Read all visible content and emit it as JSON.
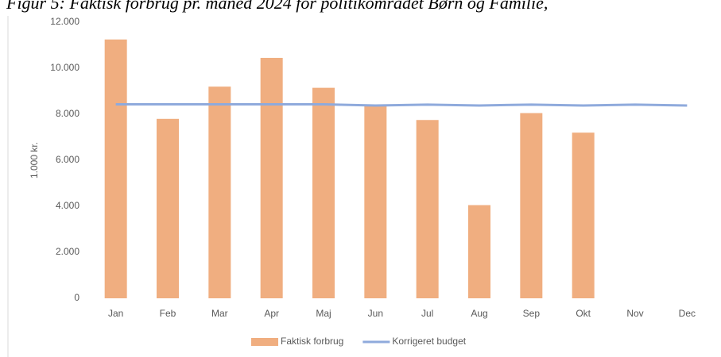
{
  "chart_data": {
    "type": "bar",
    "title": "Figur 5: Faktisk forbrug pr. måned 2024 for politikområdet Børn og Familie,",
    "ylabel": "1.000 kr.",
    "categories": [
      "Jan",
      "Feb",
      "Mar",
      "Apr",
      "Maj",
      "Jun",
      "Jul",
      "Aug",
      "Sep",
      "Okt",
      "Nov",
      "Dec"
    ],
    "series": [
      {
        "name": "Faktisk forbrug",
        "type": "bar",
        "color": "#f0ae80",
        "values": [
          11250,
          7800,
          9200,
          10450,
          9150,
          8400,
          7750,
          4050,
          8050,
          7200,
          null,
          null
        ]
      },
      {
        "name": "Korrigeret budget",
        "type": "line",
        "color": "#8faadc",
        "values": [
          8430,
          8430,
          8430,
          8430,
          8430,
          8380,
          8420,
          8380,
          8420,
          8380,
          8420,
          8380
        ]
      }
    ],
    "ylim": [
      0,
      12000
    ],
    "yticks": [
      0,
      {
        "value": 2000,
        "label": "2.000"
      },
      {
        "value": 4000,
        "label": "4.000"
      },
      {
        "value": 6000,
        "label": "6.000"
      },
      {
        "value": 8000,
        "label": "8.000"
      },
      {
        "value": 10000,
        "label": "10.000"
      },
      {
        "value": 12000,
        "label": "12.000"
      }
    ],
    "grid": false,
    "legend": "bottom"
  }
}
